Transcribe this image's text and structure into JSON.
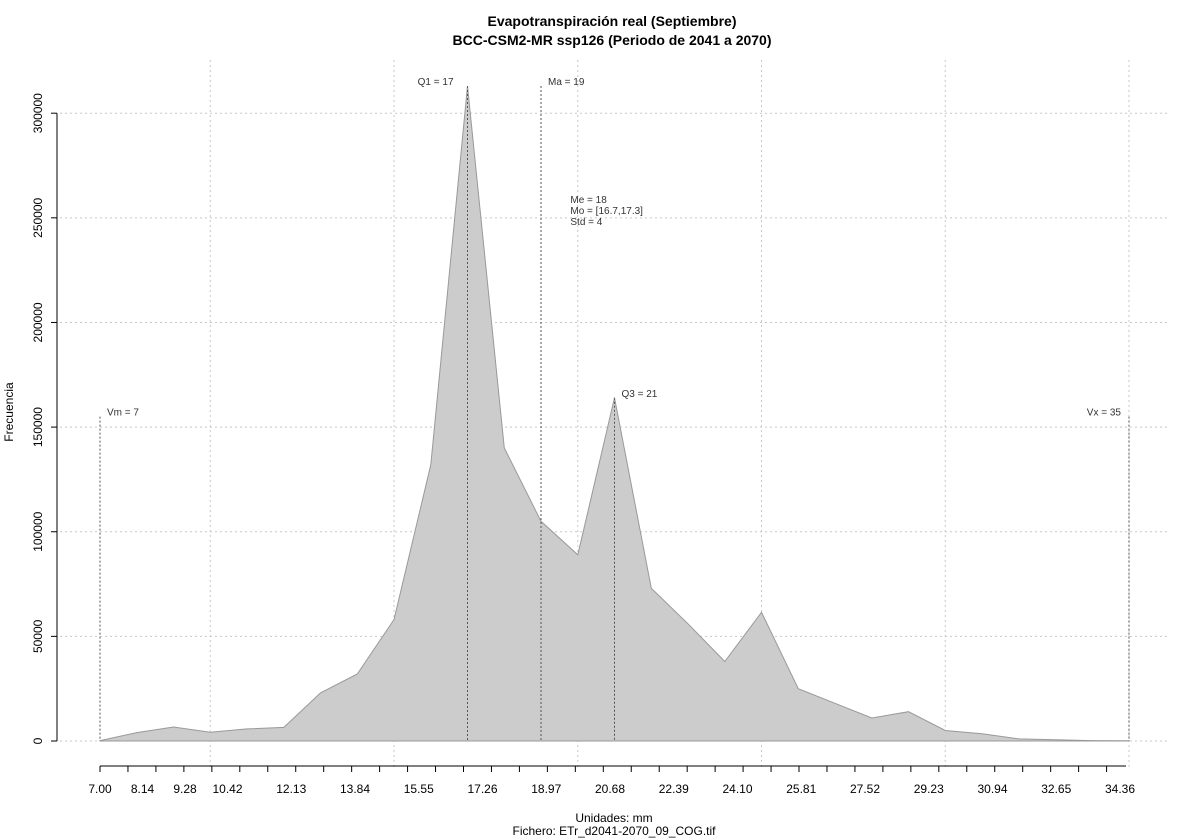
{
  "chart_data": {
    "type": "area",
    "title": "Evapotranspiración real (Septiembre)",
    "subtitle": "BCC-CSM2-MR ssp126 (Periodo de 2041 a 2070)",
    "xlabel": "Unidades: mm",
    "ylabel": "Frecuencia",
    "caption": "Fichero: ETr_d2041-2070_09_COG.tif",
    "xlim": [
      7.0,
      35.0
    ],
    "ylim": [
      0,
      300000
    ],
    "grid": true,
    "fill_color": "#cccccc",
    "line_color": "#999999",
    "x_tick_labels": [
      "7.00",
      "8.14",
      "9.28",
      "10.42",
      "12.13",
      "13.84",
      "15.55",
      "17.26",
      "18.97",
      "20.68",
      "22.39",
      "24.10",
      "25.81",
      "27.52",
      "29.23",
      "30.94",
      "32.65",
      "34.36"
    ],
    "x_tick_values": [
      7.0,
      8.14,
      9.28,
      10.42,
      12.13,
      13.84,
      15.55,
      17.26,
      18.97,
      20.68,
      22.39,
      24.1,
      25.81,
      27.52,
      29.23,
      30.94,
      32.65,
      34.36
    ],
    "y_tick_labels": [
      "0",
      "50000",
      "100000",
      "150000",
      "200000",
      "250000",
      "300000"
    ],
    "y_tick_values": [
      0,
      50000,
      100000,
      150000,
      200000,
      250000,
      300000
    ],
    "x": [
      7.0,
      8.0,
      9.0,
      10.0,
      11.0,
      12.0,
      13.0,
      14.0,
      15.0,
      16.0,
      17.0,
      18.0,
      19.0,
      20.0,
      21.0,
      22.0,
      23.0,
      24.0,
      25.0,
      26.0,
      27.0,
      28.0,
      29.0,
      30.0,
      31.0,
      32.0,
      33.0,
      34.0,
      35.0
    ],
    "y": [
      200,
      4000,
      6700,
      4200,
      5800,
      6500,
      23000,
      32000,
      58000,
      132000,
      313000,
      140000,
      105000,
      89000,
      164000,
      73000,
      56000,
      38000,
      61500,
      25000,
      18000,
      11000,
      14000,
      5000,
      3500,
      1000,
      600,
      200,
      100
    ],
    "annotations": [
      {
        "label": "Vm = 7",
        "x": 7.0,
        "top": 155000
      },
      {
        "label": "Q1 = 17",
        "x": 17.0,
        "top": 313000
      },
      {
        "label": "Ma = 19",
        "x": 19.0,
        "top": 313000
      },
      {
        "label": "Q3 = 21",
        "x": 21.0,
        "top": 164000
      },
      {
        "label": "Vx = 35",
        "x": 35.0,
        "top": 155000
      }
    ],
    "stats": [
      "Me = 18",
      "Mo = [16.7,17.3]",
      "Std = 4"
    ],
    "stats_anchor": {
      "x": 19.8,
      "y": 257000
    }
  }
}
